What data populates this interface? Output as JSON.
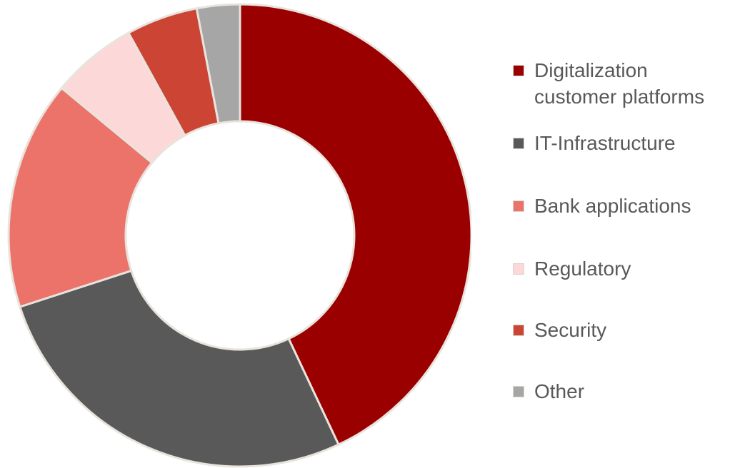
{
  "chart_data": {
    "type": "pie",
    "subtype": "donut",
    "categories": [
      "Digitalization\ncustomer platforms",
      "IT-Infrastructure",
      "Bank applications",
      "Regulatory",
      "Security",
      "Other"
    ],
    "values": [
      43,
      27,
      16,
      6,
      5,
      3
    ],
    "colors": [
      "#9b0000",
      "#595959",
      "#ec736a",
      "#fdd8d8",
      "#cc4434",
      "#a6a6a6"
    ],
    "title": "",
    "legend_position": "right",
    "start_angle_deg": 0,
    "direction": "clockwise"
  }
}
